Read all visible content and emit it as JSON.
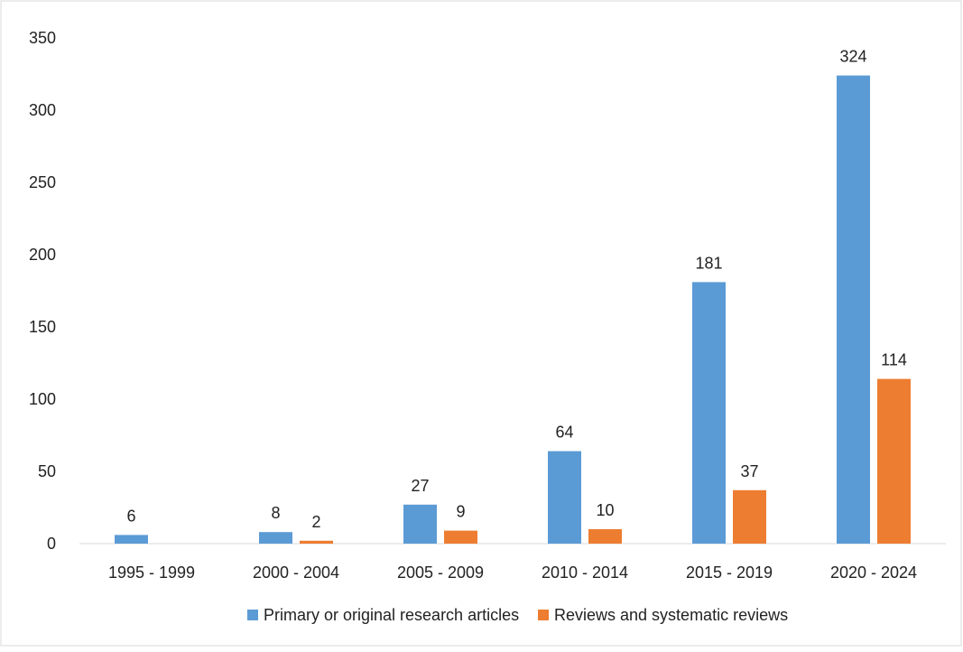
{
  "chart_data": {
    "type": "bar",
    "title": "",
    "xlabel": "",
    "ylabel": "",
    "categories": [
      "1995 - 1999",
      "2000 - 2004",
      "2005 - 2009",
      "2010 - 2014",
      "2015 - 2019",
      "2020 - 2024"
    ],
    "series": [
      {
        "name": "Primary or original research articles",
        "color": "#5b9bd5",
        "values": [
          6,
          8,
          27,
          64,
          181,
          324
        ]
      },
      {
        "name": "Reviews and systematic reviews",
        "color": "#ed7d31",
        "values": [
          null,
          2,
          9,
          10,
          37,
          114
        ]
      }
    ],
    "ylim": [
      0,
      350
    ],
    "yticks": [
      0,
      50,
      100,
      150,
      200,
      250,
      300,
      350
    ],
    "grid": false,
    "legend": "bottom",
    "data_labels": true
  }
}
